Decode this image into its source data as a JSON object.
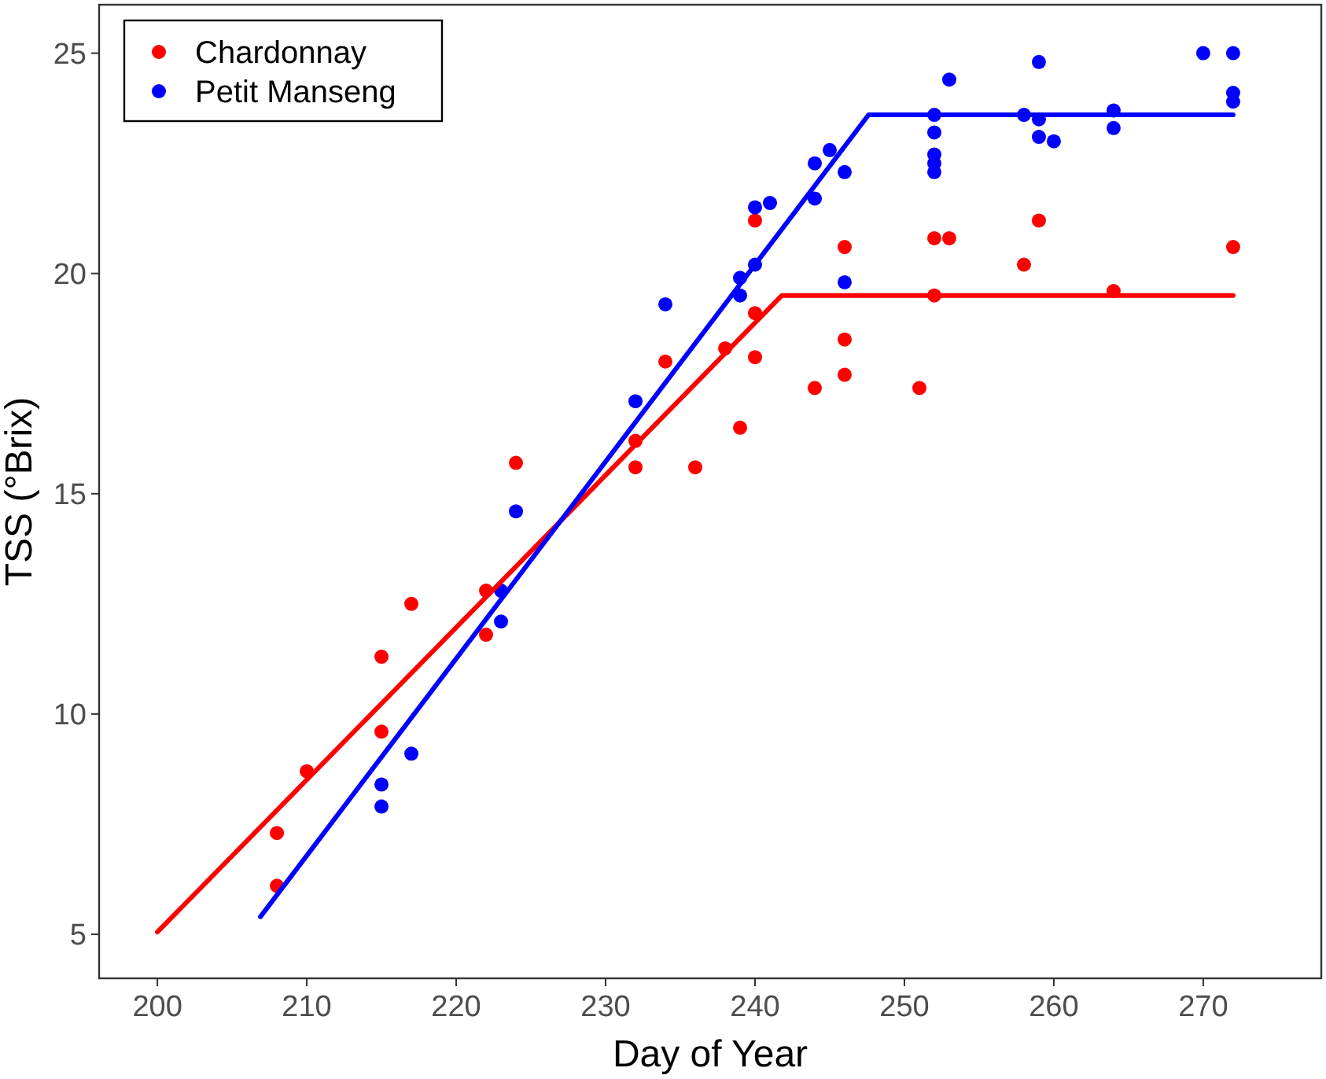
{
  "chart_data": {
    "type": "scatter",
    "xlabel": "Day of Year",
    "ylabel": "TSS (°Brix)",
    "xlim": [
      196.1,
      277.9
    ],
    "ylim": [
      4,
      26.1
    ],
    "xticks": [
      200,
      210,
      220,
      230,
      240,
      250,
      260,
      270
    ],
    "yticks": [
      5,
      10,
      15,
      20,
      25
    ],
    "grid": false,
    "legend": "top left",
    "marker": "circle",
    "series": [
      {
        "name": "Chardonnay",
        "color": "#ff0000",
        "x": [
          208,
          208,
          210,
          215,
          215,
          217,
          222,
          222,
          224,
          232,
          232,
          234,
          236,
          238,
          239,
          240,
          240,
          240,
          244,
          246,
          246,
          246,
          251,
          252,
          252,
          253,
          258,
          259,
          264,
          272
        ],
        "values": [
          7.3,
          6.1,
          8.7,
          11.3,
          9.6,
          12.5,
          12.8,
          11.8,
          15.7,
          16.2,
          15.6,
          18.0,
          15.6,
          18.3,
          16.5,
          21.2,
          19.1,
          18.1,
          17.4,
          20.6,
          18.5,
          17.7,
          17.4,
          20.8,
          19.5,
          20.8,
          20.2,
          21.2,
          19.6,
          20.6
        ]
      },
      {
        "name": "Petit Manseng",
        "color": "#0000ff",
        "x": [
          215,
          215,
          217,
          223,
          223,
          224,
          232,
          234,
          239,
          239,
          240,
          240,
          241,
          244,
          244,
          245,
          246,
          246,
          252,
          252,
          252,
          252,
          252,
          253,
          258,
          259,
          259,
          259,
          260,
          264,
          264,
          270,
          272,
          272,
          272
        ],
        "values": [
          8.4,
          7.9,
          9.1,
          12.1,
          12.8,
          14.6,
          17.1,
          19.3,
          19.5,
          19.9,
          20.2,
          21.5,
          21.6,
          21.7,
          22.5,
          22.8,
          22.3,
          19.8,
          23.6,
          23.2,
          22.7,
          22.5,
          22.3,
          24.4,
          23.6,
          24.8,
          23.5,
          23.1,
          23.0,
          23.7,
          23.3,
          25.0,
          25.0,
          24.1,
          23.9
        ]
      },
      {
        "type": "line",
        "color": "#ff0000",
        "marker": "none",
        "x": [
          200,
          241.8,
          272
        ],
        "values": [
          5.05,
          19.5,
          19.5
        ]
      },
      {
        "type": "line",
        "color": "#0000ff",
        "marker": "none",
        "x": [
          206.9,
          247.6,
          272
        ],
        "values": [
          5.4,
          23.6,
          23.6
        ]
      }
    ]
  }
}
